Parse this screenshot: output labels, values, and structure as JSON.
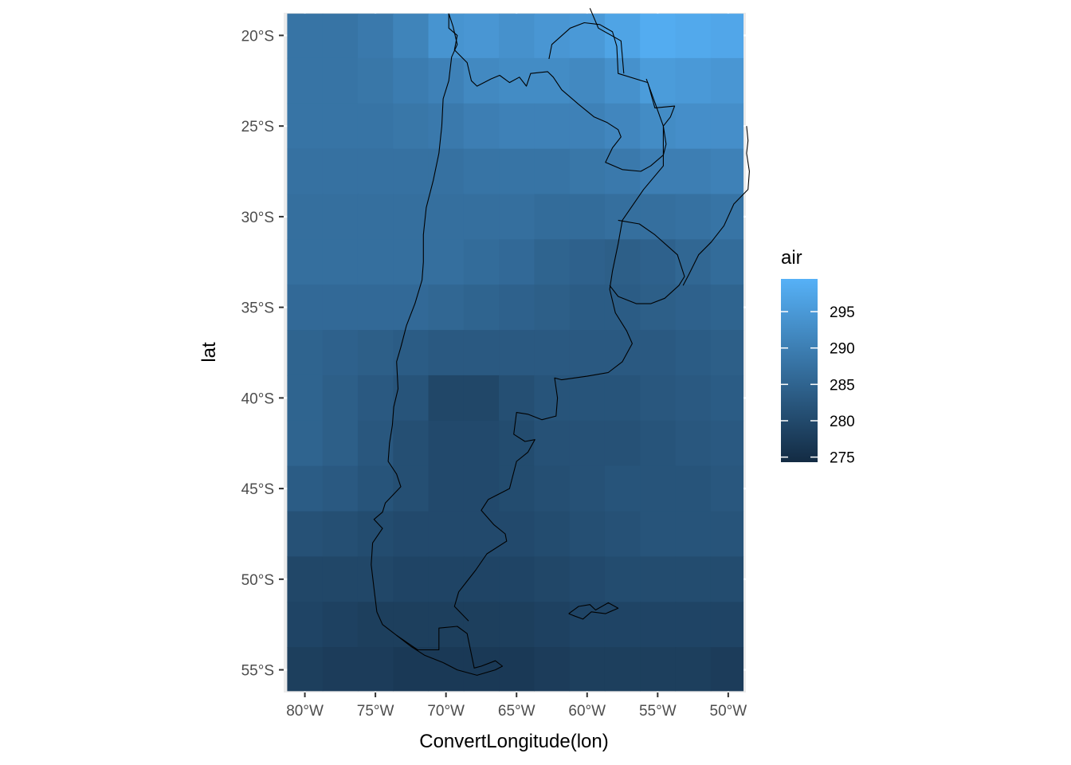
{
  "chart_data": {
    "type": "heatmap",
    "title": "",
    "xlabel": "ConvertLongitude(lon)",
    "ylabel": "lat",
    "xlim": [
      -81.5,
      -48.75
    ],
    "ylim": [
      -56.25,
      -18.75
    ],
    "x_ticks": [
      {
        "value": -80,
        "label": "80°W"
      },
      {
        "value": -75,
        "label": "75°W"
      },
      {
        "value": -70,
        "label": "70°W"
      },
      {
        "value": -65,
        "label": "65°W"
      },
      {
        "value": -60,
        "label": "60°W"
      },
      {
        "value": -55,
        "label": "55°W"
      },
      {
        "value": -50,
        "label": "50°W"
      }
    ],
    "y_ticks": [
      {
        "value": -20,
        "label": "20°S"
      },
      {
        "value": -25,
        "label": "25°S"
      },
      {
        "value": -30,
        "label": "30°S"
      },
      {
        "value": -35,
        "label": "35°S"
      },
      {
        "value": -40,
        "label": "40°S"
      },
      {
        "value": -45,
        "label": "45°S"
      },
      {
        "value": -50,
        "label": "50°S"
      },
      {
        "value": -55,
        "label": "55°S"
      }
    ],
    "x": [
      -80,
      -77.5,
      -75,
      -72.5,
      -70,
      -67.5,
      -65,
      -62.5,
      -60,
      -57.5,
      -55,
      -52.5,
      -50
    ],
    "y": [
      -20,
      -22.5,
      -25,
      -27.5,
      -30,
      -32.5,
      -35,
      -37.5,
      -40,
      -42.5,
      -45,
      -47.5,
      -50,
      -52.5,
      -55
    ],
    "air": [
      [
        288.0,
        288.0,
        289.0,
        291.0,
        294.0,
        294.5,
        293.5,
        294.5,
        295.0,
        297.0,
        298.5,
        298.0,
        297.5
      ],
      [
        288.0,
        288.0,
        288.5,
        289.5,
        290.5,
        292.0,
        292.5,
        292.5,
        292.0,
        293.5,
        295.5,
        295.0,
        294.5
      ],
      [
        288.0,
        288.0,
        288.0,
        288.5,
        289.0,
        290.0,
        290.5,
        290.5,
        290.5,
        291.5,
        292.5,
        293.0,
        293.0
      ],
      [
        287.5,
        287.5,
        287.5,
        287.5,
        287.5,
        288.0,
        288.0,
        288.0,
        288.5,
        289.0,
        290.0,
        290.0,
        290.5
      ],
      [
        287.0,
        287.0,
        287.0,
        287.0,
        287.0,
        287.0,
        287.0,
        286.5,
        286.5,
        287.0,
        287.0,
        287.5,
        288.0
      ],
      [
        287.0,
        287.0,
        287.0,
        287.0,
        287.0,
        286.5,
        286.0,
        285.0,
        284.5,
        284.0,
        284.5,
        285.5,
        286.5
      ],
      [
        286.0,
        286.0,
        286.0,
        286.0,
        285.5,
        285.0,
        284.5,
        284.0,
        283.5,
        283.5,
        284.0,
        284.5,
        285.0
      ],
      [
        285.0,
        284.5,
        284.0,
        283.5,
        283.0,
        283.0,
        283.0,
        283.0,
        283.0,
        283.0,
        283.0,
        283.5,
        284.0
      ],
      [
        285.0,
        284.0,
        283.0,
        282.0,
        279.5,
        279.5,
        281.0,
        282.0,
        282.0,
        282.0,
        282.5,
        283.0,
        283.5
      ],
      [
        285.0,
        284.0,
        282.5,
        281.0,
        280.0,
        280.0,
        280.5,
        281.5,
        281.5,
        281.5,
        282.0,
        282.5,
        283.0
      ],
      [
        283.5,
        283.0,
        282.0,
        281.0,
        280.0,
        280.0,
        280.5,
        281.0,
        281.5,
        282.0,
        282.0,
        282.0,
        282.5
      ],
      [
        281.5,
        281.0,
        280.5,
        280.0,
        280.0,
        280.0,
        280.0,
        280.5,
        281.0,
        281.5,
        282.0,
        282.0,
        282.0
      ],
      [
        279.5,
        279.5,
        279.5,
        279.0,
        279.0,
        279.0,
        279.0,
        279.5,
        280.0,
        280.5,
        280.5,
        280.5,
        280.5
      ],
      [
        279.0,
        278.5,
        278.0,
        278.0,
        278.0,
        278.0,
        278.0,
        278.5,
        279.0,
        279.0,
        279.0,
        279.0,
        279.0
      ],
      [
        278.0,
        277.5,
        277.5,
        277.0,
        277.0,
        277.0,
        277.0,
        277.5,
        278.0,
        278.0,
        278.0,
        278.0,
        277.5
      ]
    ],
    "legend": {
      "title": "air",
      "placement": "right",
      "min": 274.3,
      "max": 299.5,
      "breaks": [
        {
          "value": 275,
          "label": "275"
        },
        {
          "value": 280,
          "label": "280"
        },
        {
          "value": 285,
          "label": "285"
        },
        {
          "value": 290,
          "label": "290"
        },
        {
          "value": 295,
          "label": "295"
        }
      ],
      "low_color": "#132b43",
      "high_color": "#56b1f7"
    },
    "panel_background": "#ebebeb",
    "grid_color": "#ffffff",
    "coastline_color": "#000000",
    "coastlines": [
      [
        [
          -69.8,
          -18.8
        ],
        [
          -69.5,
          -19.5
        ],
        [
          -69.2,
          -20.5
        ],
        [
          -69.6,
          -21.2
        ],
        [
          -69.8,
          -22.5
        ],
        [
          -70.2,
          -23.5
        ],
        [
          -70.3,
          -25
        ],
        [
          -70.5,
          -26.5
        ],
        [
          -70.9,
          -28
        ],
        [
          -71.4,
          -29.5
        ],
        [
          -71.6,
          -31
        ],
        [
          -71.6,
          -32.5
        ],
        [
          -71.7,
          -33.5
        ],
        [
          -72.2,
          -34.8
        ],
        [
          -72.8,
          -36
        ],
        [
          -73.2,
          -37.2
        ],
        [
          -73.5,
          -38
        ],
        [
          -73.4,
          -39.5
        ],
        [
          -73.7,
          -40.5
        ],
        [
          -73.8,
          -41.5
        ],
        [
          -74,
          -42.5
        ],
        [
          -74.1,
          -43.5
        ],
        [
          -73.5,
          -44.2
        ],
        [
          -73.2,
          -44.9
        ],
        [
          -74.3,
          -45.8
        ],
        [
          -74.5,
          -46.3
        ],
        [
          -75.1,
          -46.7
        ],
        [
          -74.5,
          -47.2
        ],
        [
          -75.2,
          -48
        ],
        [
          -75.3,
          -49.2
        ],
        [
          -75.1,
          -50.5
        ],
        [
          -74.9,
          -51.8
        ],
        [
          -74.5,
          -52.5
        ],
        [
          -73.5,
          -53.1
        ],
        [
          -72.5,
          -53.7
        ],
        [
          -71.5,
          -54.2
        ],
        [
          -70.2,
          -54.6
        ]
      ],
      [
        [
          -70.2,
          -54.6
        ],
        [
          -69.2,
          -55.0
        ],
        [
          -67.8,
          -55.3
        ],
        [
          -66.5,
          -55.0
        ],
        [
          -66.0,
          -54.8
        ],
        [
          -66.5,
          -54.5
        ],
        [
          -67.5,
          -54.8
        ],
        [
          -68.0,
          -54.9
        ],
        [
          -68.5,
          -53.0
        ],
        [
          -69.2,
          -52.6
        ],
        [
          -70.5,
          -52.7
        ],
        [
          -70.5,
          -53.9
        ],
        [
          -72.0,
          -53.9
        ],
        [
          -73.5,
          -53.1
        ]
      ],
      [
        [
          -69.8,
          -18.8
        ],
        [
          -69.8,
          -19.6
        ],
        [
          -69.2,
          -20.0
        ],
        [
          -69.4,
          -20.8
        ],
        [
          -68.5,
          -21.5
        ],
        [
          -68.2,
          -22.5
        ],
        [
          -67.8,
          -22.8
        ],
        [
          -66.8,
          -22.4
        ],
        [
          -66.2,
          -22.2
        ],
        [
          -65.5,
          -22.6
        ],
        [
          -64.8,
          -22.3
        ],
        [
          -64.3,
          -22.8
        ],
        [
          -64.0,
          -22.1
        ],
        [
          -62.8,
          -22.0
        ],
        [
          -62.4,
          -22.3
        ],
        [
          -61.8,
          -23.0
        ],
        [
          -60.6,
          -23.8
        ],
        [
          -59.5,
          -24.5
        ],
        [
          -58.6,
          -24.8
        ],
        [
          -57.8,
          -25.2
        ],
        [
          -57.6,
          -25.6
        ],
        [
          -58.2,
          -26.2
        ],
        [
          -58.7,
          -27.0
        ],
        [
          -57.5,
          -27.4
        ],
        [
          -56.2,
          -27.5
        ],
        [
          -55.5,
          -27.2
        ],
        [
          -54.6,
          -26.6
        ],
        [
          -54.4,
          -26.0
        ],
        [
          -54.6,
          -25.0
        ],
        [
          -54.1,
          -24.5
        ],
        [
          -53.8,
          -23.9
        ],
        [
          -55.2,
          -24.0
        ],
        [
          -55.7,
          -22.6
        ],
        [
          -57.8,
          -22.1
        ],
        [
          -57.9,
          -20.6
        ],
        [
          -58.2,
          -19.8
        ],
        [
          -59.1,
          -19.4
        ],
        [
          -60.2,
          -19.3
        ],
        [
          -61.2,
          -19.6
        ],
        [
          -62.5,
          -20.5
        ],
        [
          -62.7,
          -21.3
        ]
      ],
      [
        [
          -59.8,
          -18.5
        ],
        [
          -59.2,
          -19.6
        ],
        [
          -57.6,
          -20.3
        ],
        [
          -57.4,
          -22.1
        ]
      ],
      [
        [
          -55.8,
          -22.4
        ],
        [
          -54.6,
          -25.0
        ],
        [
          -54.6,
          -27.2
        ],
        [
          -56.0,
          -28.5
        ],
        [
          -57.5,
          -30.2
        ],
        [
          -57.8,
          -31.5
        ],
        [
          -58.2,
          -33.0
        ],
        [
          -58.4,
          -34.0
        ]
      ],
      [
        [
          -57.8,
          -30.2
        ],
        [
          -56.3,
          -30.4
        ],
        [
          -55.2,
          -31.0
        ],
        [
          -53.6,
          -32.1
        ],
        [
          -53.1,
          -33.3
        ],
        [
          -53.5,
          -33.8
        ],
        [
          -54.5,
          -34.5
        ],
        [
          -55.5,
          -34.8
        ],
        [
          -56.5,
          -34.8
        ],
        [
          -57.8,
          -34.4
        ],
        [
          -58.4,
          -33.8
        ]
      ],
      [
        [
          -58.4,
          -34.0
        ],
        [
          -58.0,
          -35.3
        ],
        [
          -57.2,
          -36.3
        ],
        [
          -56.8,
          -37.0
        ],
        [
          -57.5,
          -38.0
        ],
        [
          -58.5,
          -38.6
        ],
        [
          -60.0,
          -38.8
        ],
        [
          -61.8,
          -39.0
        ],
        [
          -62.3,
          -38.9
        ],
        [
          -62.1,
          -40.0
        ],
        [
          -62.2,
          -41.0
        ],
        [
          -63.2,
          -41.2
        ],
        [
          -64.2,
          -40.9
        ],
        [
          -65.0,
          -40.8
        ],
        [
          -65.2,
          -42.0
        ],
        [
          -64.4,
          -42.4
        ],
        [
          -63.7,
          -42.3
        ],
        [
          -64.2,
          -43.0
        ],
        [
          -65.0,
          -43.5
        ],
        [
          -65.5,
          -45.0
        ],
        [
          -67.0,
          -45.6
        ],
        [
          -67.5,
          -46.2
        ],
        [
          -66.6,
          -47.0
        ],
        [
          -65.8,
          -47.5
        ],
        [
          -65.7,
          -47.9
        ],
        [
          -67.1,
          -48.6
        ],
        [
          -67.9,
          -49.5
        ],
        [
          -68.6,
          -50.2
        ],
        [
          -69.1,
          -50.7
        ],
        [
          -69.4,
          -51.5
        ],
        [
          -68.4,
          -52.3
        ]
      ],
      [
        [
          -48.7,
          -25.0
        ],
        [
          -48.6,
          -25.8
        ],
        [
          -48.7,
          -26.5
        ],
        [
          -48.5,
          -27.5
        ],
        [
          -48.6,
          -28.5
        ],
        [
          -49.6,
          -29.3
        ],
        [
          -50.3,
          -30.5
        ],
        [
          -51.2,
          -31.4
        ],
        [
          -52.1,
          -32.1
        ],
        [
          -52.8,
          -33.2
        ],
        [
          -53.2,
          -33.8
        ]
      ],
      [
        [
          -61.3,
          -51.9
        ],
        [
          -60.6,
          -51.5
        ],
        [
          -59.8,
          -51.4
        ],
        [
          -59.4,
          -51.7
        ],
        [
          -58.5,
          -51.3
        ],
        [
          -57.8,
          -51.6
        ],
        [
          -58.7,
          -51.9
        ],
        [
          -59.7,
          -51.8
        ],
        [
          -60.3,
          -52.2
        ],
        [
          -61.0,
          -52.0
        ],
        [
          -61.3,
          -51.9
        ]
      ]
    ]
  }
}
